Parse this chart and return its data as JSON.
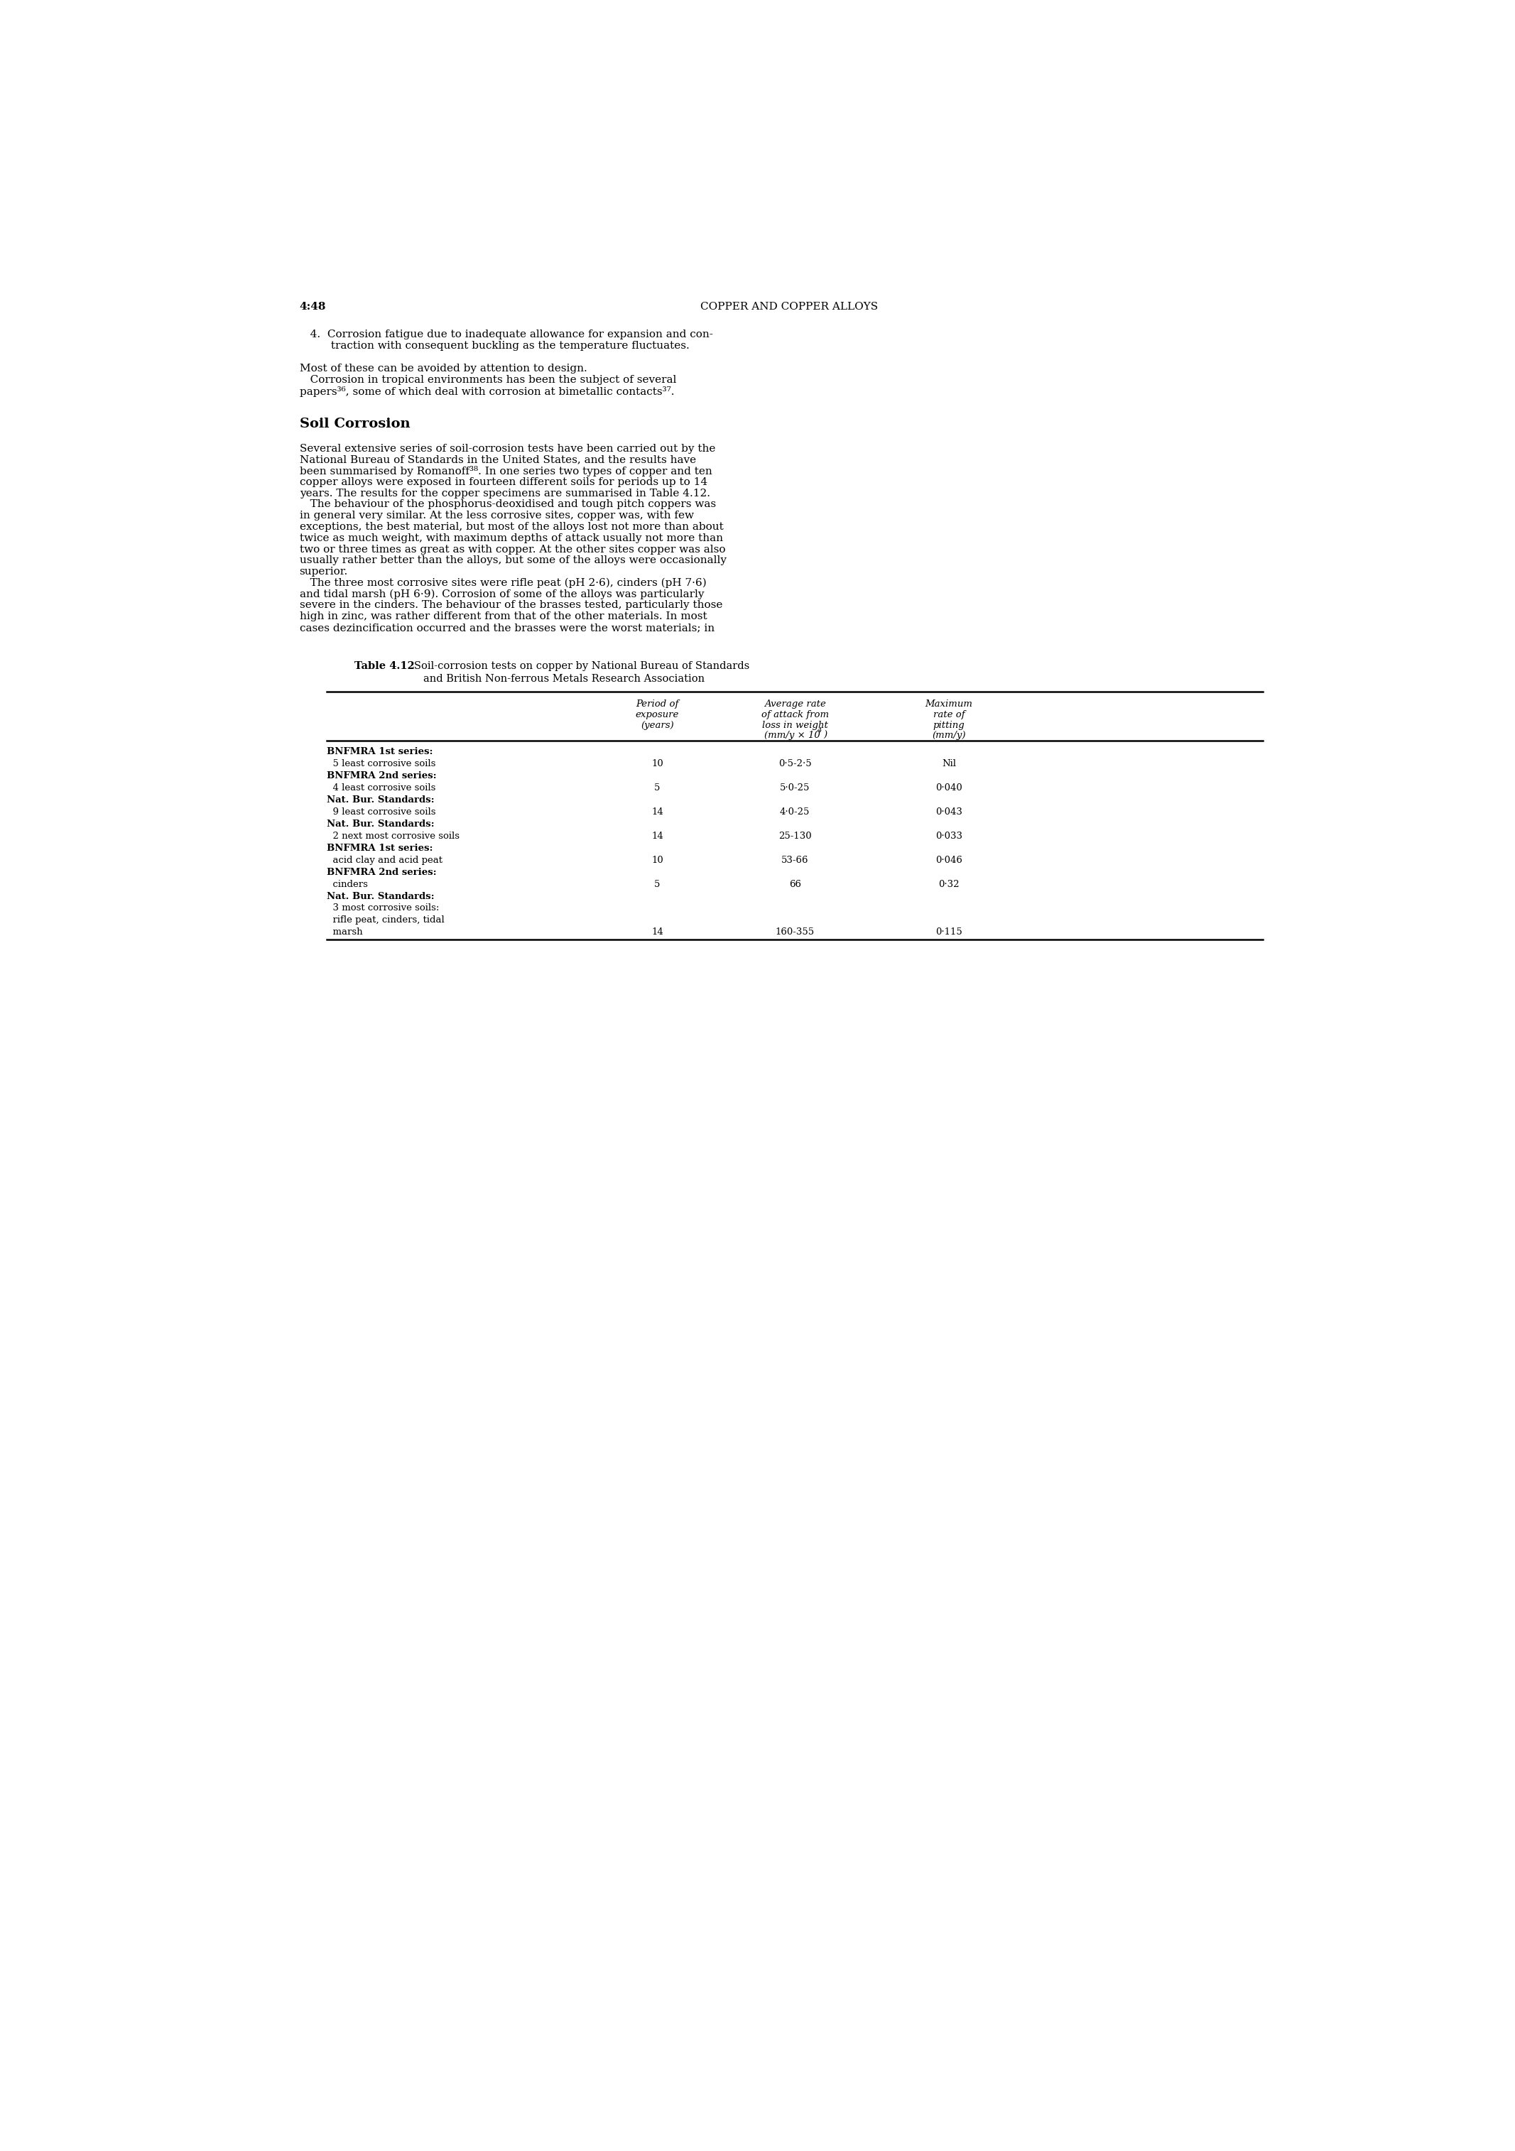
{
  "page_header_left": "4:48",
  "page_header_center": "COPPER AND COPPER ALLOYS",
  "body_text": [
    "   4.  Corrosion fatigue due to inadequate allowance for expansion and con-",
    "         traction with consequent buckling as the temperature fluctuates.",
    "",
    "Most of these can be avoided by attention to design.",
    "   Corrosion in tropical environments has been the subject of several",
    "papers³⁶, some of which deal with corrosion at bimetallic contacts³⁷."
  ],
  "section_title": "Soil Corrosion",
  "section_text": [
    "Several extensive series of soil-corrosion tests have been carried out by the",
    "National Bureau of Standards in the United States, and the results have",
    "been summarised by Romanoff³⁸. In one series two types of copper and ten",
    "copper alloys were exposed in fourteen different soils for periods up to 14",
    "years. The results for the copper specimens are summarised in Table 4.12.",
    "   The behaviour of the phosphorus-deoxidised and tough pitch coppers was",
    "in general very similar. At the less corrosive sites, copper was, with few",
    "exceptions, the best material, but most of the alloys lost not more than about",
    "twice as much weight, with maximum depths of attack usually not more than",
    "two or three times as great as with copper. At the other sites copper was also",
    "usually rather better than the alloys, but some of the alloys were occasionally",
    "superior.",
    "   The three most corrosive sites were rifle peat (pH 2·6), cinders (pH 7·6)",
    "and tidal marsh (pH 6·9). Corrosion of some of the alloys was particularly",
    "severe in the cinders. The behaviour of the brasses tested, particularly those",
    "high in zinc, was rather different from that of the other materials. In most",
    "cases dezincification occurred and the brasses were the worst materials; in"
  ],
  "table_title_bold": "Table 4.12",
  "table_title_rest": "   Soil-corrosion tests on copper by National Bureau of Standards",
  "table_title_line2": "and British Non-ferrous Metals Research Association",
  "rows": [
    {
      "label1": "BNFMRA 1st series:",
      "label2": "  5 least corrosive soils",
      "period": "10",
      "avg_rate": "0·5-2·5",
      "max_pitting": "Nil"
    },
    {
      "label1": "BNFMRA 2nd series:",
      "label2": "  4 least corrosive soils",
      "period": "5",
      "avg_rate": "5·0-25",
      "max_pitting": "0·040"
    },
    {
      "label1": "Nat. Bur. Standards:",
      "label2": "  9 least corrosive soils",
      "period": "14",
      "avg_rate": "4·0-25",
      "max_pitting": "0·043"
    },
    {
      "label1": "Nat. Bur. Standards:",
      "label2": "  2 next most corrosive soils",
      "period": "14",
      "avg_rate": "25-130",
      "max_pitting": "0·033"
    },
    {
      "label1": "BNFMRA 1st series:",
      "label2": "  acid clay and acid peat",
      "period": "10",
      "avg_rate": "53-66",
      "max_pitting": "0·046"
    },
    {
      "label1": "BNFMRA 2nd series:",
      "label2": "  cinders",
      "period": "5",
      "avg_rate": "66",
      "max_pitting": "0·32"
    },
    {
      "label1": "Nat. Bur. Standards:",
      "label2": "  3 most corrosive soils:",
      "label3": "  rifle peat, cinders, tidal",
      "label4": "  marsh",
      "period": "14",
      "avg_rate": "160-355",
      "max_pitting": "0·115"
    }
  ],
  "background_color": "#ffffff",
  "text_color": "#000000",
  "font_size_body": 11,
  "font_size_header": 11,
  "font_size_section": 14,
  "font_size_table": 9.5
}
